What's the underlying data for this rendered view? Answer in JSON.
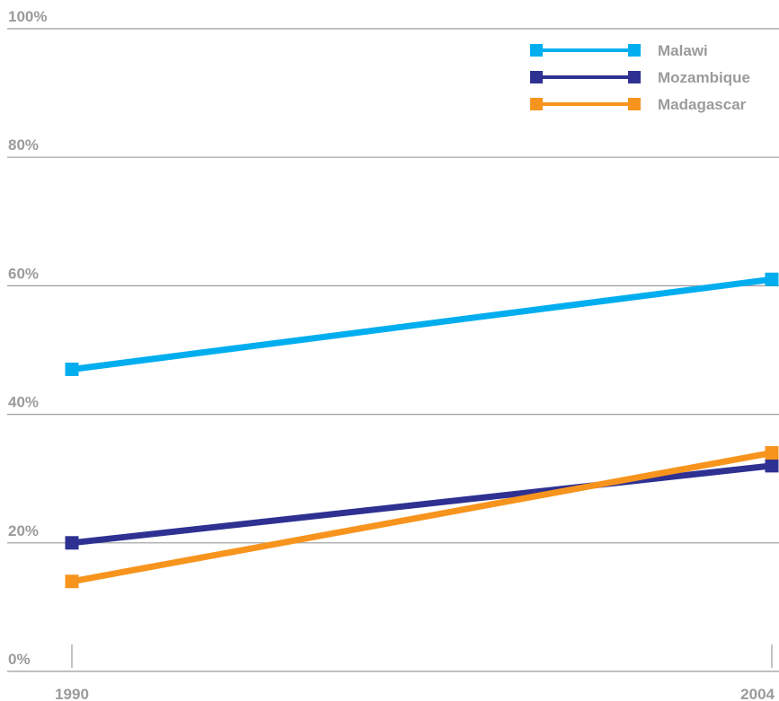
{
  "chart_data": {
    "type": "line",
    "title": "",
    "xlabel": "",
    "ylabel": "",
    "x": [
      "1990",
      "2004"
    ],
    "ylim": [
      0,
      100
    ],
    "y_ticks": [
      {
        "value": 0,
        "label": "0%"
      },
      {
        "value": 20,
        "label": "20%"
      },
      {
        "value": 40,
        "label": "40%"
      },
      {
        "value": 60,
        "label": "60%"
      },
      {
        "value": 80,
        "label": "80%"
      },
      {
        "value": 100,
        "label": "100%"
      }
    ],
    "grid": true,
    "legend_position": "top-right",
    "series": [
      {
        "name": "Malawi",
        "color": "#00aeef",
        "values": [
          47,
          61
        ]
      },
      {
        "name": "Mozambique",
        "color": "#2e3192",
        "values": [
          20,
          32
        ]
      },
      {
        "name": "Madagascar",
        "color": "#f7941d",
        "values": [
          14,
          34
        ]
      }
    ],
    "colors": {
      "grid": "#9b9b9b",
      "label": "#9b9b9b"
    }
  }
}
